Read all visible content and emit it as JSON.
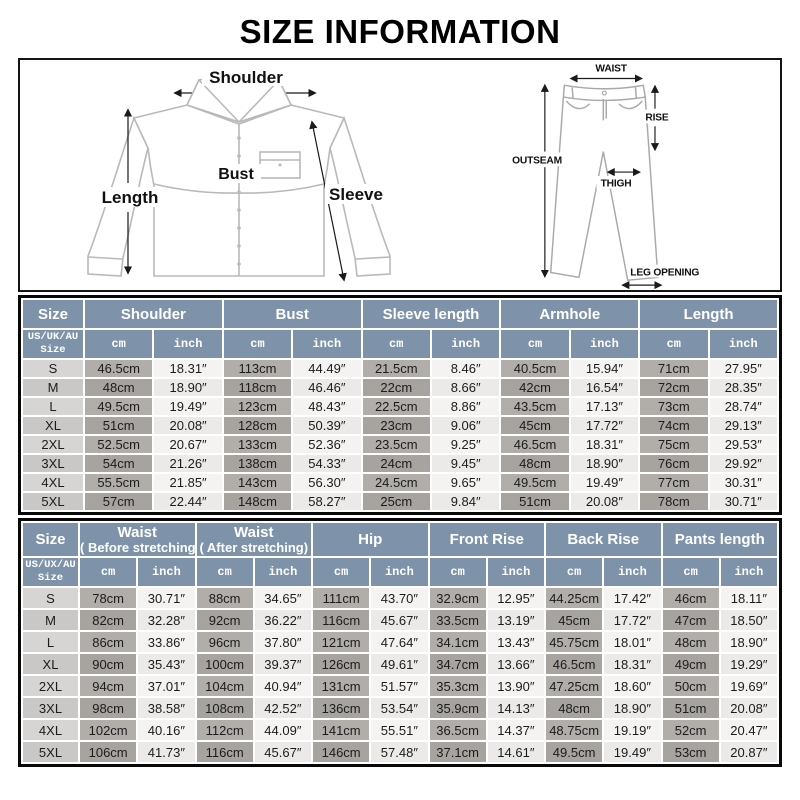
{
  "title": "SIZE INFORMATION",
  "diagram": {
    "shirt": {
      "shoulder": "Shoulder",
      "length": "Length",
      "bust": "Bust",
      "sleeve": "Sleeve"
    },
    "pants": {
      "waist": "WAIST",
      "rise": "RISE",
      "outseam": "OUTSEAM",
      "thigh": "THIGH",
      "leg_opening": "LEG OPENING"
    }
  },
  "units": {
    "cm": "cm",
    "inch": "inch"
  },
  "colors": {
    "header_blue": "#7E93AA",
    "cm_gray": "#aca9a5",
    "inch_light": "#f1f0ee",
    "size_gray": "#d0cfcd",
    "table_border": "#080808"
  },
  "top_table": {
    "columns": [
      "Size",
      "Shoulder",
      "Bust",
      "Sleeve length",
      "Armhole",
      "Length"
    ],
    "size_sub": {
      "line1": "US/UK/AU",
      "line2": "Size"
    },
    "rows": [
      {
        "size": "S",
        "values": [
          "46.5cm",
          "18.31″",
          "113cm",
          "44.49″",
          "21.5cm",
          "8.46″",
          "40.5cm",
          "15.94″",
          "71cm",
          "27.95″"
        ]
      },
      {
        "size": "M",
        "values": [
          "48cm",
          "18.90″",
          "118cm",
          "46.46″",
          "22cm",
          "8.66″",
          "42cm",
          "16.54″",
          "72cm",
          "28.35″"
        ]
      },
      {
        "size": "L",
        "values": [
          "49.5cm",
          "19.49″",
          "123cm",
          "48.43″",
          "22.5cm",
          "8.86″",
          "43.5cm",
          "17.13″",
          "73cm",
          "28.74″"
        ]
      },
      {
        "size": "XL",
        "values": [
          "51cm",
          "20.08″",
          "128cm",
          "50.39″",
          "23cm",
          "9.06″",
          "45cm",
          "17.72″",
          "74cm",
          "29.13″"
        ]
      },
      {
        "size": "2XL",
        "values": [
          "52.5cm",
          "20.67″",
          "133cm",
          "52.36″",
          "23.5cm",
          "9.25″",
          "46.5cm",
          "18.31″",
          "75cm",
          "29.53″"
        ]
      },
      {
        "size": "3XL",
        "values": [
          "54cm",
          "21.26″",
          "138cm",
          "54.33″",
          "24cm",
          "9.45″",
          "48cm",
          "18.90″",
          "76cm",
          "29.92″"
        ]
      },
      {
        "size": "4XL",
        "values": [
          "55.5cm",
          "21.85″",
          "143cm",
          "56.30″",
          "24.5cm",
          "9.65″",
          "49.5cm",
          "19.49″",
          "77cm",
          "30.31″"
        ]
      },
      {
        "size": "5XL",
        "values": [
          "57cm",
          "22.44″",
          "148cm",
          "58.27″",
          "25cm",
          "9.84″",
          "51cm",
          "20.08″",
          "78cm",
          "30.71″"
        ]
      }
    ]
  },
  "bottom_table": {
    "columns": [
      {
        "l1": "Size",
        "l2": ""
      },
      {
        "l1": "Waist",
        "l2": "( Before stretching)"
      },
      {
        "l1": "Waist",
        "l2": "( After stretching)"
      },
      {
        "l1": "Hip",
        "l2": ""
      },
      {
        "l1": "Front Rise",
        "l2": ""
      },
      {
        "l1": "Back Rise",
        "l2": ""
      },
      {
        "l1": "Pants length",
        "l2": ""
      }
    ],
    "size_sub": {
      "line1": "US/UX/AU",
      "line2": "Size"
    },
    "rows": [
      {
        "size": "S",
        "values": [
          "78cm",
          "30.71″",
          "88cm",
          "34.65″",
          "111cm",
          "43.70″",
          "32.9cm",
          "12.95″",
          "44.25cm",
          "17.42″",
          "46cm",
          "18.11″"
        ]
      },
      {
        "size": "M",
        "values": [
          "82cm",
          "32.28″",
          "92cm",
          "36.22″",
          "116cm",
          "45.67″",
          "33.5cm",
          "13.19″",
          "45cm",
          "17.72″",
          "47cm",
          "18.50″"
        ]
      },
      {
        "size": "L",
        "values": [
          "86cm",
          "33.86″",
          "96cm",
          "37.80″",
          "121cm",
          "47.64″",
          "34.1cm",
          "13.43″",
          "45.75cm",
          "18.01″",
          "48cm",
          "18.90″"
        ]
      },
      {
        "size": "XL",
        "values": [
          "90cm",
          "35.43″",
          "100cm",
          "39.37″",
          "126cm",
          "49.61″",
          "34.7cm",
          "13.66″",
          "46.5cm",
          "18.31″",
          "49cm",
          "19.29″"
        ]
      },
      {
        "size": "2XL",
        "values": [
          "94cm",
          "37.01″",
          "104cm",
          "40.94″",
          "131cm",
          "51.57″",
          "35.3cm",
          "13.90″",
          "47.25cm",
          "18.60″",
          "50cm",
          "19.69″"
        ]
      },
      {
        "size": "3XL",
        "values": [
          "98cm",
          "38.58″",
          "108cm",
          "42.52″",
          "136cm",
          "53.54″",
          "35.9cm",
          "14.13″",
          "48cm",
          "18.90″",
          "51cm",
          "20.08″"
        ]
      },
      {
        "size": "4XL",
        "values": [
          "102cm",
          "40.16″",
          "112cm",
          "44.09″",
          "141cm",
          "55.51″",
          "36.5cm",
          "14.37″",
          "48.75cm",
          "19.19″",
          "52cm",
          "20.47″"
        ]
      },
      {
        "size": "5XL",
        "values": [
          "106cm",
          "41.73″",
          "116cm",
          "45.67″",
          "146cm",
          "57.48″",
          "37.1cm",
          "14.61″",
          "49.5cm",
          "19.49″",
          "53cm",
          "20.87″"
        ]
      }
    ]
  }
}
